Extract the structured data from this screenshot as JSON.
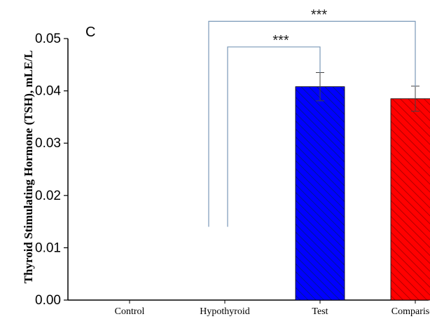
{
  "chart_data": {
    "type": "bar",
    "panel_label": "C",
    "ylabel": "Thyroid Stimulating Hormone (TSH), mLE/L",
    "xlabel": "",
    "categories": [
      "Control",
      "Hypothyroid",
      "Test",
      "Comparison"
    ],
    "values": [
      0,
      0,
      0.0408,
      0.0385
    ],
    "errors": [
      0,
      0,
      0.0027,
      0.0024
    ],
    "ylim": [
      0,
      0.05
    ],
    "yticks": [
      "0.00",
      "0.01",
      "0.02",
      "0.03",
      "0.04",
      "0.05"
    ],
    "grid": false,
    "bar_colors": [
      "#0000ff",
      "#0000ff",
      "#0000ff",
      "#ff0000"
    ],
    "hatch": "diagonal",
    "significance": [
      {
        "from": "Hypothyroid",
        "to": "Test",
        "label": "***",
        "bracket_y": 0.0484,
        "left_leg_y": 0.014,
        "right_leg_y": 0.0435
      },
      {
        "from": "Control",
        "to": "Comparison",
        "label": "***",
        "bracket_y": 0.0533,
        "left_leg_y": 0.014,
        "right_leg_y": 0.0408
      }
    ]
  }
}
